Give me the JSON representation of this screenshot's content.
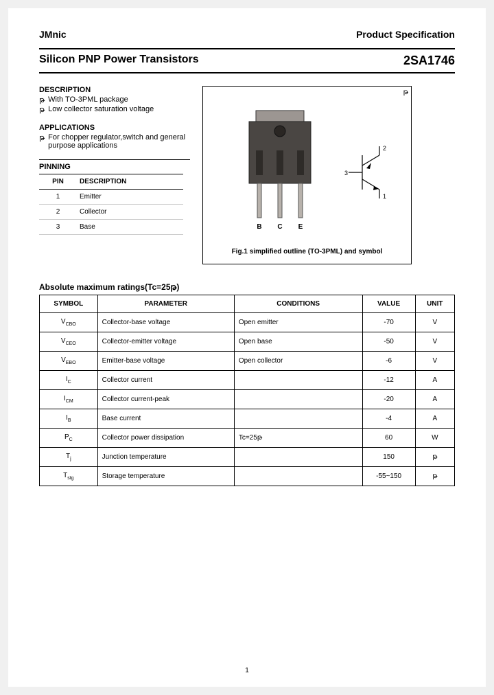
{
  "header": {
    "brand": "JMnic",
    "right": "Product Specification"
  },
  "title": {
    "left": "Silicon PNP Power Transistors",
    "right": "2SA1746"
  },
  "description": {
    "heading": "DESCRIPTION",
    "bullets": [
      "With TO-3PML package",
      "Low collector saturation voltage"
    ]
  },
  "applications": {
    "heading": "APPLICATIONS",
    "bullets": [
      "For chopper regulator,switch and general purpose applications"
    ]
  },
  "pinning": {
    "heading": "PINNING",
    "col1": "PIN",
    "col2": "DESCRIPTION",
    "rows": [
      {
        "pin": "1",
        "desc": "Emitter"
      },
      {
        "pin": "2",
        "desc": "Collector"
      },
      {
        "pin": "3",
        "desc": "Base"
      }
    ]
  },
  "figure": {
    "mu_mark": "թ",
    "pin_labels": {
      "b": "B",
      "c": "C",
      "e": "E"
    },
    "sym_labels": {
      "n1": "1",
      "n2": "2",
      "n3": "3"
    },
    "caption": "Fig.1 simplified outline (TO-3PML) and symbol"
  },
  "ratings": {
    "heading": "Absolute maximum ratings(Tc=25թ)",
    "headers": {
      "symbol": "SYMBOL",
      "parameter": "PARAMETER",
      "conditions": "CONDITIONS",
      "value": "VALUE",
      "unit": "UNIT"
    },
    "rows": [
      {
        "sym": "V",
        "sub": "CBO",
        "param": "Collector-base voltage",
        "cond": "Open emitter",
        "val": "-70",
        "unit": "V"
      },
      {
        "sym": "V",
        "sub": "CEO",
        "param": "Collector-emitter voltage",
        "cond": "Open base",
        "val": "-50",
        "unit": "V"
      },
      {
        "sym": "V",
        "sub": "EBO",
        "param": "Emitter-base voltage",
        "cond": "Open collector",
        "val": "-6",
        "unit": "V"
      },
      {
        "sym": "I",
        "sub": "C",
        "param": "Collector current",
        "cond": "",
        "val": "-12",
        "unit": "A"
      },
      {
        "sym": "I",
        "sub": "CM",
        "param": "Collector current-peak",
        "cond": "",
        "val": "-20",
        "unit": "A"
      },
      {
        "sym": "I",
        "sub": "B",
        "param": "Base current",
        "cond": "",
        "val": "-4",
        "unit": "A"
      },
      {
        "sym": "P",
        "sub": "C",
        "param": "Collector power dissipation",
        "cond": "Tc=25թ",
        "val": "60",
        "unit": "W"
      },
      {
        "sym": "T",
        "sub": "j",
        "param": "Junction temperature",
        "cond": "",
        "val": "150",
        "unit": "թ"
      },
      {
        "sym": "T",
        "sub": "stg",
        "param": "Storage temperature",
        "cond": "",
        "val": "-55~150",
        "unit": "թ"
      }
    ]
  },
  "page_num": "1",
  "colors": {
    "text": "#000000",
    "border": "#000000",
    "light_border": "#cccccc",
    "pkg_body": "#4a4643",
    "pkg_tab": "#9c9692",
    "pkg_lead": "#b8b2ac"
  }
}
